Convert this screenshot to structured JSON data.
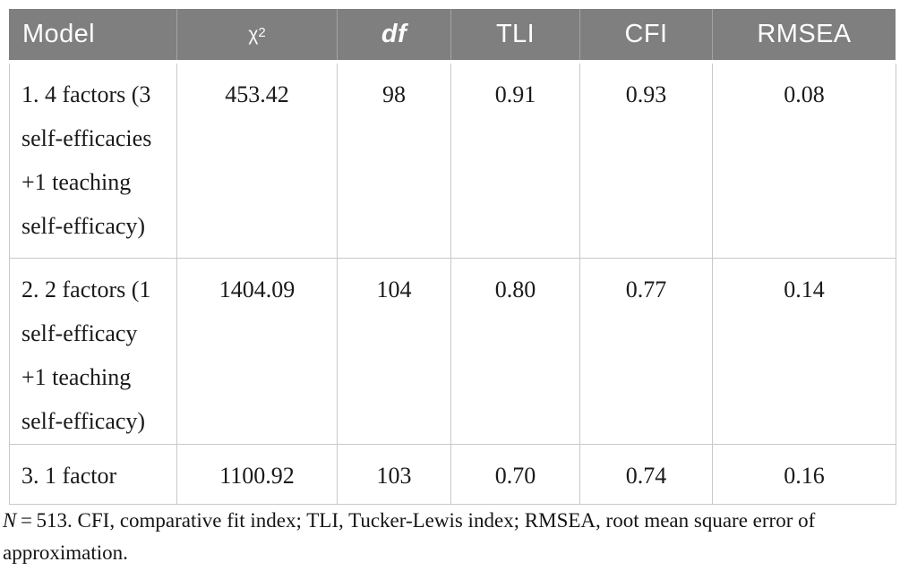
{
  "table": {
    "columns": [
      {
        "key": "model",
        "label": "Model"
      },
      {
        "key": "chi2",
        "label": "χ",
        "sup": "2"
      },
      {
        "key": "df",
        "label": "df"
      },
      {
        "key": "tli",
        "label": "TLI"
      },
      {
        "key": "cfi",
        "label": "CFI"
      },
      {
        "key": "rmsea",
        "label": "RMSEA"
      }
    ],
    "rows": [
      {
        "model": "1. 4 factors (3\nself-efficacies\n+1 teaching\nself-efficacy)",
        "chi2": "453.42",
        "df": "98",
        "tli": "0.91",
        "cfi": "0.93",
        "rmsea": "0.08"
      },
      {
        "model": "2. 2 factors (1\nself-efficacy\n+1 teaching\nself-efficacy)",
        "chi2": "1404.09",
        "df": "104",
        "tli": "0.80",
        "cfi": "0.77",
        "rmsea": "0.14"
      },
      {
        "model": "3. 1 factor",
        "chi2": "1100.92",
        "df": "103",
        "tli": "0.70",
        "cfi": "0.74",
        "rmsea": "0.16"
      }
    ]
  },
  "chart_data": {
    "type": "table",
    "title": "",
    "columns": [
      "Model",
      "χ2",
      "df",
      "TLI",
      "CFI",
      "RMSEA"
    ],
    "rows": [
      [
        "1. 4 factors (3 self-efficacies +1 teaching self-efficacy)",
        453.42,
        98,
        0.91,
        0.93,
        0.08
      ],
      [
        "2. 2 factors (1 self-efficacy +1 teaching self-efficacy)",
        1404.09,
        104,
        0.8,
        0.77,
        0.14
      ],
      [
        "3. 1 factor",
        1100.92,
        103,
        0.7,
        0.74,
        0.16
      ]
    ]
  },
  "footnote": {
    "n_label": "N",
    "text": " = 513. CFI, comparative fit index; TLI, Tucker-Lewis index; RMSEA, root mean square error of approximation."
  },
  "colors": {
    "header_bg": "#7f7f7f",
    "header_text": "#fcfcfc",
    "header_divider": "#a3a3a3",
    "body_border": "#c9c9c9",
    "body_text": "#1a1a1a"
  }
}
